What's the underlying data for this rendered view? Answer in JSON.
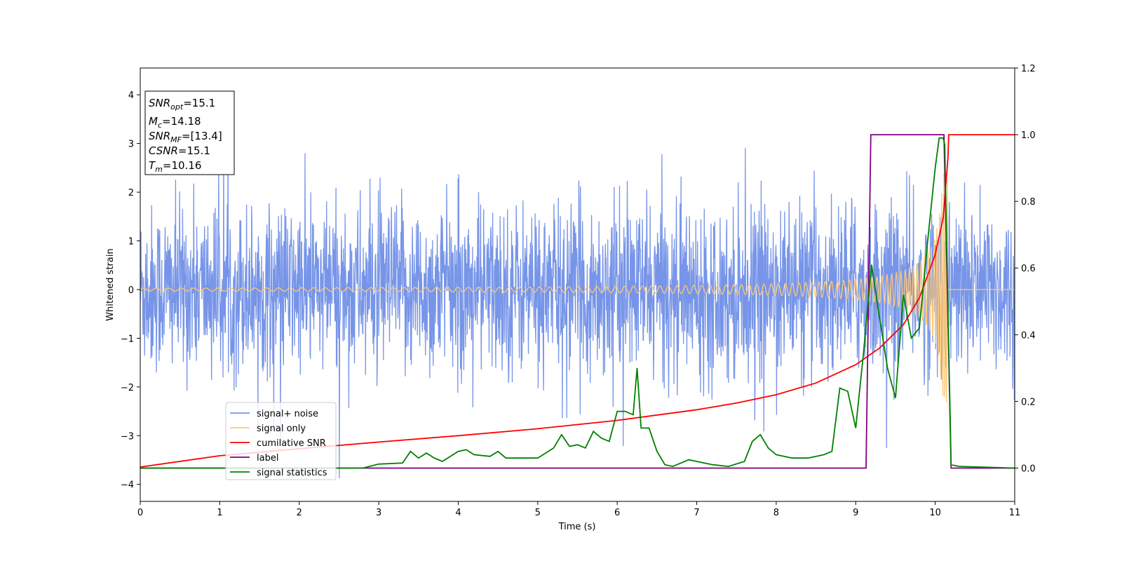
{
  "chart_data": {
    "type": "line",
    "title": "",
    "xlabel": "Time (s)",
    "ylabel": "Whitened strain",
    "xlim": [
      0,
      11
    ],
    "ylim_left": [
      -4.35,
      4.55
    ],
    "ylim_right": [
      -0.1,
      1.2
    ],
    "xticks": [
      "0",
      "1",
      "2",
      "3",
      "4",
      "5",
      "6",
      "7",
      "8",
      "9",
      "10",
      "11"
    ],
    "yticks_left": [
      "−4",
      "−3",
      "−2",
      "−1",
      "0",
      "1",
      "2",
      "3",
      "4"
    ],
    "yticks_right": [
      "0.0",
      "0.2",
      "0.4",
      "0.6",
      "0.8",
      "1.0",
      "1.2"
    ],
    "grid": false,
    "legend_position": "lower-left",
    "annotation": {
      "lines": [
        {
          "id": "snr-opt",
          "prefix": "SNR",
          "sub": "opt",
          "value": "=15.1"
        },
        {
          "id": "mc",
          "prefix": "M",
          "sub": "c",
          "value": "=14.18"
        },
        {
          "id": "snr-mf",
          "prefix": "SNR",
          "sub": "MF",
          "value": "=[13.4]"
        },
        {
          "id": "csnr",
          "prefix": "CSNR",
          "sub": "",
          "value": "=15.1"
        },
        {
          "id": "tm",
          "prefix": "T",
          "sub": "m",
          "value": "=10.16"
        }
      ]
    },
    "series": [
      {
        "id": "noise",
        "name": "signal+ noise",
        "color": "#7795e8",
        "axis": "left",
        "kind": "noise",
        "amplitude_std": 0.95,
        "t_end": 11
      },
      {
        "id": "signal",
        "name": "signal only",
        "color": "#ffc875",
        "axis": "left",
        "kind": "chirp",
        "t_merge": 10.16,
        "amp_start": 0.03,
        "amp_peak": 2.4
      },
      {
        "id": "csnr",
        "name": "cumilative SNR",
        "color": "#ff0000",
        "axis": "right",
        "x": [
          0,
          1,
          2,
          3,
          4,
          5,
          6,
          7,
          7.5,
          8,
          8.5,
          9,
          9.3,
          9.6,
          9.8,
          10.0,
          10.1,
          10.16,
          10.17,
          11
        ],
        "y": [
          0.003,
          0.037,
          0.058,
          0.078,
          0.097,
          0.118,
          0.143,
          0.175,
          0.195,
          0.22,
          0.255,
          0.31,
          0.36,
          0.43,
          0.51,
          0.64,
          0.75,
          0.93,
          1.0,
          1.0
        ]
      },
      {
        "id": "label",
        "name": "label",
        "color": "#800080",
        "axis": "right",
        "x": [
          0,
          9.13,
          9.19,
          10.11,
          10.2,
          11
        ],
        "y": [
          0.0,
          0.0,
          1.0,
          1.0,
          0.0,
          0.0
        ]
      },
      {
        "id": "stats",
        "name": "signal statistics",
        "color": "#008000",
        "axis": "right",
        "x": [
          0,
          2.8,
          3.0,
          3.3,
          3.4,
          3.5,
          3.6,
          3.7,
          3.8,
          4.0,
          4.1,
          4.2,
          4.4,
          4.5,
          4.6,
          4.8,
          5.0,
          5.2,
          5.3,
          5.4,
          5.5,
          5.6,
          5.7,
          5.8,
          5.9,
          6.0,
          6.1,
          6.2,
          6.25,
          6.3,
          6.4,
          6.5,
          6.6,
          6.7,
          6.8,
          6.9,
          7.0,
          7.2,
          7.4,
          7.6,
          7.7,
          7.8,
          7.9,
          8.0,
          8.2,
          8.4,
          8.6,
          8.7,
          8.8,
          8.9,
          9.0,
          9.1,
          9.2,
          9.3,
          9.4,
          9.5,
          9.6,
          9.7,
          9.8,
          9.9,
          10.0,
          10.05,
          10.1,
          10.12,
          10.15,
          10.2,
          10.3,
          11
        ],
        "y": [
          0.0,
          0.0,
          0.012,
          0.015,
          0.05,
          0.03,
          0.045,
          0.03,
          0.02,
          0.05,
          0.055,
          0.04,
          0.035,
          0.05,
          0.03,
          0.03,
          0.03,
          0.06,
          0.1,
          0.065,
          0.07,
          0.06,
          0.11,
          0.09,
          0.08,
          0.17,
          0.17,
          0.16,
          0.3,
          0.12,
          0.12,
          0.05,
          0.01,
          0.005,
          0.015,
          0.025,
          0.02,
          0.01,
          0.005,
          0.02,
          0.08,
          0.1,
          0.06,
          0.04,
          0.03,
          0.03,
          0.04,
          0.05,
          0.24,
          0.23,
          0.12,
          0.35,
          0.61,
          0.45,
          0.3,
          0.21,
          0.52,
          0.39,
          0.42,
          0.67,
          0.9,
          0.99,
          0.99,
          0.97,
          0.6,
          0.01,
          0.005,
          0.0
        ]
      }
    ]
  }
}
